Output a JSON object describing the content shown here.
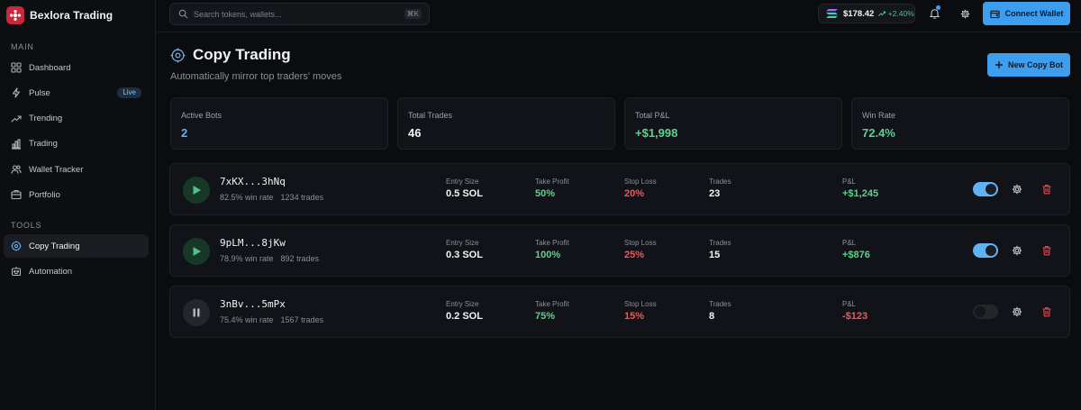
{
  "app": {
    "name": "Bexlora Trading"
  },
  "sidebar": {
    "main_label": "MAIN",
    "tools_label": "TOOLS",
    "main_items": [
      {
        "label": "Dashboard",
        "icon": "grid-icon"
      },
      {
        "label": "Pulse",
        "icon": "bolt-icon",
        "badge": "Live"
      },
      {
        "label": "Trending",
        "icon": "trend-icon"
      },
      {
        "label": "Trading",
        "icon": "bar-chart-icon"
      },
      {
        "label": "Wallet Tracker",
        "icon": "users-icon"
      },
      {
        "label": "Portfolio",
        "icon": "briefcase-icon"
      }
    ],
    "tool_items": [
      {
        "label": "Copy Trading",
        "icon": "crosshair-icon",
        "active": true
      },
      {
        "label": "Automation",
        "icon": "bot-icon"
      }
    ]
  },
  "header": {
    "search_placeholder": "Search tokens, wallets...",
    "search_shortcut": "⌘K",
    "sol_price": "$178.42",
    "sol_change": "+2.40%",
    "connect_label": "Connect Wallet"
  },
  "page": {
    "title": "Copy Trading",
    "subtitle": "Automatically mirror top traders' moves",
    "new_bot_label": "New Copy Bot"
  },
  "stats": [
    {
      "label": "Active Bots",
      "value": "2",
      "color": "#5fb3f5"
    },
    {
      "label": "Total Trades",
      "value": "46",
      "color": "#f2f3f5"
    },
    {
      "label": "Total P&L",
      "value": "+$1,998",
      "color": "#5fd18f"
    },
    {
      "label": "Win Rate",
      "value": "72.4%",
      "color": "#5fd18f"
    }
  ],
  "bot_labels": {
    "entry": "Entry Size",
    "take_profit": "Take Profit",
    "stop_loss": "Stop Loss",
    "trades": "Trades",
    "pnl": "P&L"
  },
  "bots": [
    {
      "address": "7xKX...3hNq",
      "win_rate": "82.5% win rate",
      "trades_total": "1234 trades",
      "entry": "0.5 SOL",
      "take_profit": "50%",
      "stop_loss": "20%",
      "trades": "23",
      "pnl": "+$1,245",
      "running": true,
      "enabled": true
    },
    {
      "address": "9pLM...8jKw",
      "win_rate": "78.9% win rate",
      "trades_total": "892 trades",
      "entry": "0.3 SOL",
      "take_profit": "100%",
      "stop_loss": "25%",
      "trades": "15",
      "pnl": "+$876",
      "running": true,
      "enabled": true
    },
    {
      "address": "3nBv...5mPx",
      "win_rate": "75.4% win rate",
      "trades_total": "1567 trades",
      "entry": "0.2 SOL",
      "take_profit": "75%",
      "stop_loss": "15%",
      "trades": "8",
      "pnl": "-$123",
      "running": false,
      "enabled": false
    }
  ],
  "colors": {
    "accent": "#3d9eef",
    "positive": "#5fd18f",
    "negative": "#f0575a"
  }
}
